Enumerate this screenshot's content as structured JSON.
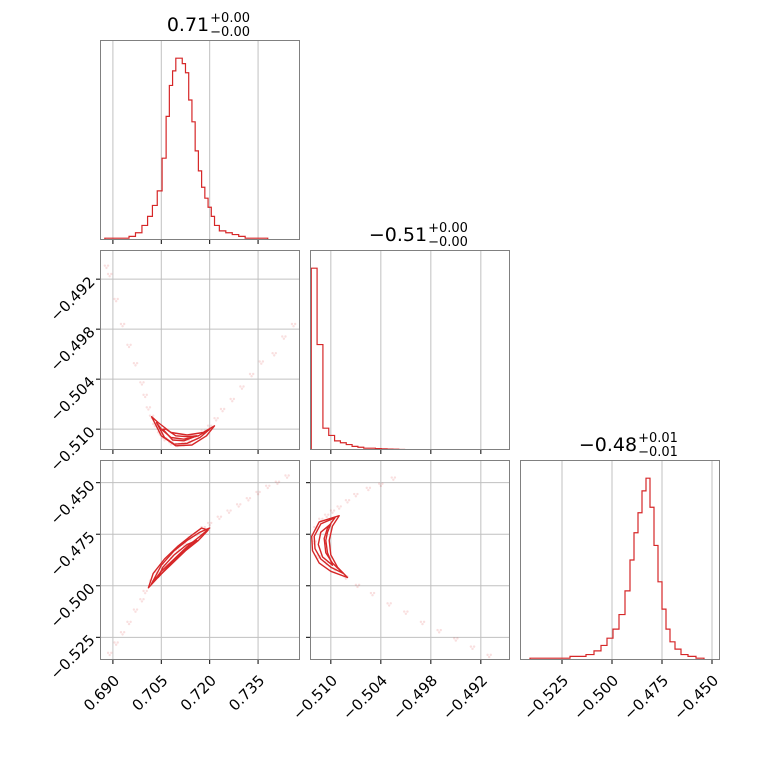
{
  "chart_data": [
    {
      "panel": "hist-p1",
      "type": "histogram",
      "title": {
        "value": "0.71",
        "upper": "+0.00",
        "lower": "−0.00"
      },
      "xlim": [
        0.686,
        0.748
      ],
      "xticks": [
        0.69,
        0.705,
        0.72,
        0.735
      ],
      "color": "#d62728",
      "bins": {
        "x": [
          0.689,
          0.692,
          0.694,
          0.696,
          0.698,
          0.7,
          0.7015,
          0.703,
          0.7045,
          0.706,
          0.707,
          0.708,
          0.709,
          0.71,
          0.711,
          0.712,
          0.713,
          0.714,
          0.715,
          0.716,
          0.717,
          0.718,
          0.719,
          0.72,
          0.721,
          0.722,
          0.724,
          0.726,
          0.728,
          0.73,
          0.732,
          0.736
        ],
        "y": [
          0.01,
          0.01,
          0.01,
          0.02,
          0.04,
          0.08,
          0.13,
          0.19,
          0.27,
          0.45,
          0.68,
          0.85,
          0.93,
          1.0,
          1.0,
          0.97,
          0.92,
          0.77,
          0.65,
          0.49,
          0.38,
          0.29,
          0.23,
          0.18,
          0.13,
          0.08,
          0.05,
          0.04,
          0.03,
          0.02,
          0.01,
          0.01
        ]
      }
    },
    {
      "panel": "hist-p2",
      "type": "histogram",
      "title": {
        "value": "−0.51",
        "upper": "+0.00",
        "lower": "−0.00"
      },
      "xlim": [
        -0.5125,
        -0.4885
      ],
      "xticks": [
        -0.51,
        -0.504,
        -0.498,
        -0.492
      ],
      "tick_labels": [
        "−0.510",
        "−0.504",
        "−0.498",
        "−0.492"
      ],
      "color": "#d62728",
      "bins": {
        "x": [
          -0.512,
          -0.5113,
          -0.5106,
          -0.5099,
          -0.5092,
          -0.5085,
          -0.5078,
          -0.5071,
          -0.5064,
          -0.5057,
          -0.505,
          -0.5043,
          -0.5036,
          -0.5029,
          -0.5022,
          -0.5015,
          -0.5008,
          -0.5001,
          -0.4994,
          -0.4987
        ],
        "y": [
          1.0,
          0.58,
          0.12,
          0.08,
          0.05,
          0.04,
          0.03,
          0.02,
          0.015,
          0.01,
          0.01,
          0.008,
          0.006,
          0.005,
          0.004,
          0.003,
          0.002,
          0.002,
          0.001,
          0.001
        ]
      }
    },
    {
      "panel": "hist-p3",
      "type": "histogram",
      "title": {
        "value": "−0.48",
        "upper": "+0.01",
        "lower": "−0.01"
      },
      "xlim": [
        -0.546,
        -0.446
      ],
      "xticks": [
        -0.525,
        -0.5,
        -0.475,
        -0.45
      ],
      "tick_labels": [
        "−0.525",
        "−0.500",
        "−0.475",
        "−0.450"
      ],
      "color": "#d62728",
      "bins": {
        "x": [
          -0.539,
          -0.535,
          -0.531,
          -0.527,
          -0.523,
          -0.519,
          -0.515,
          -0.511,
          -0.507,
          -0.504,
          -0.501,
          -0.498,
          -0.495,
          -0.492,
          -0.49,
          -0.488,
          -0.486,
          -0.484,
          -0.482,
          -0.48,
          -0.478,
          -0.476,
          -0.474,
          -0.472,
          -0.47,
          -0.467,
          -0.464,
          -0.46,
          -0.456
        ],
        "y": [
          0.01,
          0.01,
          0.01,
          0.01,
          0.01,
          0.02,
          0.02,
          0.03,
          0.05,
          0.08,
          0.12,
          0.17,
          0.25,
          0.38,
          0.55,
          0.7,
          0.81,
          0.93,
          1.0,
          0.84,
          0.63,
          0.43,
          0.28,
          0.17,
          0.1,
          0.06,
          0.03,
          0.02,
          0.01
        ]
      }
    },
    {
      "panel": "scatter-p1-p2",
      "type": "scatter",
      "xlim": [
        0.686,
        0.748
      ],
      "ylim": [
        -0.5125,
        -0.4885
      ],
      "xticks": [
        0.69,
        0.705,
        0.72,
        0.735
      ],
      "yticks": [
        -0.51,
        -0.504,
        -0.498,
        -0.492
      ],
      "ytick_labels": [
        "−0.510",
        "−0.504",
        "−0.498",
        "−0.492"
      ],
      "color": "#d62728",
      "points": [
        [
          0.688,
          -0.4905
        ],
        [
          0.689,
          -0.4915
        ],
        [
          0.691,
          -0.4945
        ],
        [
          0.693,
          -0.4975
        ],
        [
          0.695,
          -0.5
        ],
        [
          0.697,
          -0.5022
        ],
        [
          0.699,
          -0.5045
        ],
        [
          0.7,
          -0.506
        ],
        [
          0.701,
          -0.5075
        ],
        [
          0.702,
          -0.5085
        ],
        [
          0.703,
          -0.5095
        ],
        [
          0.7045,
          -0.5105
        ],
        [
          0.706,
          -0.5112
        ],
        [
          0.708,
          -0.5117
        ],
        [
          0.71,
          -0.5119
        ],
        [
          0.712,
          -0.5118
        ],
        [
          0.714,
          -0.5115
        ],
        [
          0.716,
          -0.511
        ],
        [
          0.718,
          -0.5103
        ],
        [
          0.72,
          -0.5097
        ],
        [
          0.722,
          -0.5088
        ],
        [
          0.724,
          -0.5077
        ],
        [
          0.727,
          -0.5065
        ],
        [
          0.73,
          -0.505
        ],
        [
          0.733,
          -0.5035
        ],
        [
          0.736,
          -0.502
        ],
        [
          0.74,
          -0.501
        ],
        [
          0.743,
          -0.499
        ],
        [
          0.746,
          -0.4975
        ]
      ],
      "contours": [
        [
          [
            0.7035,
            -0.5092
          ],
          [
            0.706,
            -0.511
          ],
          [
            0.709,
            -0.5118
          ],
          [
            0.713,
            -0.5117
          ],
          [
            0.717,
            -0.511
          ],
          [
            0.72,
            -0.51
          ],
          [
            0.7165,
            -0.5108
          ],
          [
            0.712,
            -0.5112
          ],
          [
            0.708,
            -0.511
          ],
          [
            0.705,
            -0.51
          ]
        ],
        [
          [
            0.7055,
            -0.51
          ],
          [
            0.7085,
            -0.5113
          ],
          [
            0.712,
            -0.5114
          ],
          [
            0.716,
            -0.5108
          ],
          [
            0.713,
            -0.5109
          ],
          [
            0.7095,
            -0.5108
          ],
          [
            0.7065,
            -0.51
          ]
        ],
        [
          [
            0.702,
            -0.5085
          ],
          [
            0.705,
            -0.5108
          ],
          [
            0.7095,
            -0.512
          ],
          [
            0.7145,
            -0.5119
          ],
          [
            0.719,
            -0.5108
          ],
          [
            0.7215,
            -0.5096
          ],
          [
            0.718,
            -0.5104
          ],
          [
            0.713,
            -0.5107
          ],
          [
            0.708,
            -0.5104
          ],
          [
            0.704,
            -0.5092
          ]
        ]
      ]
    },
    {
      "panel": "scatter-p1-p3",
      "type": "scatter",
      "xlim": [
        0.686,
        0.748
      ],
      "ylim": [
        -0.536,
        -0.439
      ],
      "xticks": [
        0.69,
        0.705,
        0.72,
        0.735
      ],
      "xtick_labels": [
        "0.690",
        "0.705",
        "0.720",
        "0.735"
      ],
      "yticks": [
        -0.525,
        -0.5,
        -0.475,
        -0.45
      ],
      "ytick_labels": [
        "−0.525",
        "−0.500",
        "−0.475",
        "−0.450"
      ],
      "color": "#d62728",
      "points": [
        [
          0.689,
          -0.533
        ],
        [
          0.691,
          -0.528
        ],
        [
          0.693,
          -0.523
        ],
        [
          0.695,
          -0.518
        ],
        [
          0.697,
          -0.512
        ],
        [
          0.699,
          -0.507
        ],
        [
          0.7,
          -0.503
        ],
        [
          0.702,
          -0.498
        ],
        [
          0.704,
          -0.494
        ],
        [
          0.706,
          -0.49
        ],
        [
          0.708,
          -0.486
        ],
        [
          0.71,
          -0.483
        ],
        [
          0.712,
          -0.48
        ],
        [
          0.714,
          -0.477
        ],
        [
          0.716,
          -0.475
        ],
        [
          0.718,
          -0.472
        ],
        [
          0.72,
          -0.47
        ],
        [
          0.723,
          -0.467
        ],
        [
          0.726,
          -0.464
        ],
        [
          0.729,
          -0.461
        ],
        [
          0.732,
          -0.458
        ],
        [
          0.735,
          -0.455
        ],
        [
          0.738,
          -0.452
        ],
        [
          0.741,
          -0.45
        ],
        [
          0.744,
          -0.447
        ]
      ],
      "contours": [
        [
          [
            0.702,
            -0.499
          ],
          [
            0.705,
            -0.493
          ],
          [
            0.709,
            -0.487
          ],
          [
            0.713,
            -0.481
          ],
          [
            0.717,
            -0.476
          ],
          [
            0.72,
            -0.472
          ],
          [
            0.717,
            -0.474
          ],
          [
            0.713,
            -0.478
          ],
          [
            0.709,
            -0.483
          ],
          [
            0.705,
            -0.49
          ]
        ],
        [
          [
            0.704,
            -0.496
          ],
          [
            0.708,
            -0.489
          ],
          [
            0.712,
            -0.483
          ],
          [
            0.716,
            -0.478
          ],
          [
            0.713,
            -0.48
          ],
          [
            0.709,
            -0.485
          ],
          [
            0.7055,
            -0.491
          ]
        ],
        [
          [
            0.701,
            -0.501
          ],
          [
            0.7045,
            -0.495
          ],
          [
            0.7085,
            -0.489
          ],
          [
            0.7125,
            -0.483
          ],
          [
            0.7165,
            -0.478
          ],
          [
            0.7195,
            -0.473
          ],
          [
            0.7175,
            -0.472
          ],
          [
            0.714,
            -0.476
          ],
          [
            0.71,
            -0.481
          ],
          [
            0.706,
            -0.487
          ],
          [
            0.7025,
            -0.494
          ]
        ]
      ]
    },
    {
      "panel": "scatter-p2-p3",
      "type": "scatter",
      "xlim": [
        -0.5125,
        -0.4885
      ],
      "ylim": [
        -0.536,
        -0.439
      ],
      "xticks": [
        -0.51,
        -0.504,
        -0.498,
        -0.492
      ],
      "xtick_labels": [
        "−0.510",
        "−0.504",
        "−0.498",
        "−0.492"
      ],
      "yticks": [
        -0.525,
        -0.5,
        -0.475,
        -0.45
      ],
      "color": "#d62728",
      "points": [
        [
          -0.512,
          -0.479
        ],
        [
          -0.5118,
          -0.472
        ],
        [
          -0.5112,
          -0.468
        ],
        [
          -0.5105,
          -0.466
        ],
        [
          -0.5098,
          -0.464
        ],
        [
          -0.509,
          -0.462
        ],
        [
          -0.508,
          -0.459
        ],
        [
          -0.507,
          -0.456
        ],
        [
          -0.5055,
          -0.453
        ],
        [
          -0.504,
          -0.451
        ],
        [
          -0.5025,
          -0.448
        ],
        [
          -0.5115,
          -0.486
        ],
        [
          -0.5105,
          -0.489
        ],
        [
          -0.5095,
          -0.492
        ],
        [
          -0.5082,
          -0.496
        ],
        [
          -0.5068,
          -0.5
        ],
        [
          -0.505,
          -0.504
        ],
        [
          -0.503,
          -0.509
        ],
        [
          -0.501,
          -0.513
        ],
        [
          -0.499,
          -0.518
        ],
        [
          -0.497,
          -0.522
        ],
        [
          -0.495,
          -0.526
        ],
        [
          -0.493,
          -0.53
        ],
        [
          -0.491,
          -0.534
        ]
      ],
      "contours": [
        [
          [
            -0.5095,
            -0.467
          ],
          [
            -0.5112,
            -0.47
          ],
          [
            -0.512,
            -0.476
          ],
          [
            -0.5119,
            -0.482
          ],
          [
            -0.5112,
            -0.487
          ],
          [
            -0.51,
            -0.491
          ],
          [
            -0.5085,
            -0.494
          ],
          [
            -0.5098,
            -0.489
          ],
          [
            -0.5106,
            -0.484
          ],
          [
            -0.5108,
            -0.477
          ],
          [
            -0.5104,
            -0.472
          ]
        ],
        [
          [
            -0.51,
            -0.47
          ],
          [
            -0.5112,
            -0.474
          ],
          [
            -0.5115,
            -0.48
          ],
          [
            -0.511,
            -0.486
          ],
          [
            -0.5098,
            -0.49
          ],
          [
            -0.5104,
            -0.484
          ],
          [
            -0.5106,
            -0.478
          ],
          [
            -0.5104,
            -0.474
          ]
        ],
        [
          [
            -0.509,
            -0.466
          ],
          [
            -0.5114,
            -0.469
          ],
          [
            -0.5123,
            -0.476
          ],
          [
            -0.5122,
            -0.483
          ],
          [
            -0.5114,
            -0.489
          ],
          [
            -0.51,
            -0.493
          ],
          [
            -0.508,
            -0.496
          ],
          [
            -0.5092,
            -0.491
          ],
          [
            -0.51,
            -0.485
          ],
          [
            -0.5102,
            -0.478
          ],
          [
            -0.5098,
            -0.471
          ]
        ]
      ]
    }
  ]
}
